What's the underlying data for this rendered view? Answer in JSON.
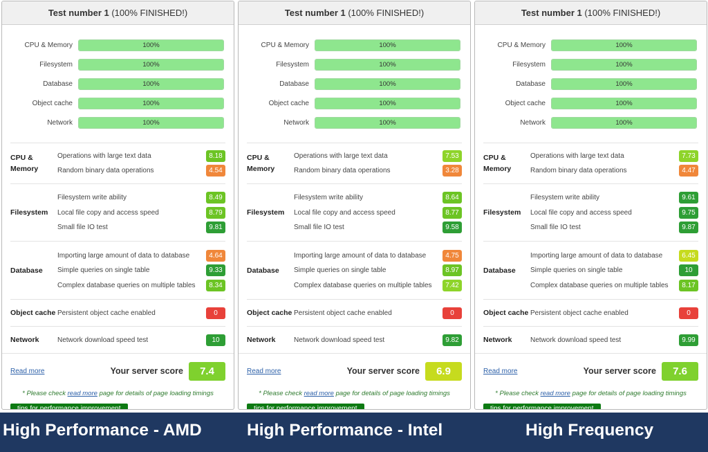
{
  "panels": [
    {
      "title": "Test number 1",
      "status": "(100% FINISHED!)",
      "progress": [
        {
          "label": "CPU & Memory",
          "percent": 100,
          "text": "100%"
        },
        {
          "label": "Filesystem",
          "percent": 100,
          "text": "100%"
        },
        {
          "label": "Database",
          "percent": 100,
          "text": "100%"
        },
        {
          "label": "Object cache",
          "percent": 100,
          "text": "100%"
        },
        {
          "label": "Network",
          "percent": 100,
          "text": "100%"
        }
      ],
      "groups": [
        {
          "name": "CPU & Memory",
          "items": [
            {
              "label": "Operations with large text data",
              "score": "8.18",
              "color": "#6cc424"
            },
            {
              "label": "Random binary data operations",
              "score": "4.54",
              "color": "#f0873a"
            }
          ]
        },
        {
          "name": "Filesystem",
          "items": [
            {
              "label": "Filesystem write ability",
              "score": "8.49",
              "color": "#6cc424"
            },
            {
              "label": "Local file copy and access speed",
              "score": "8.79",
              "color": "#6cc424"
            },
            {
              "label": "Small file IO test",
              "score": "9.81",
              "color": "#2e9e35"
            }
          ]
        },
        {
          "name": "Database",
          "items": [
            {
              "label": "Importing large amount of data to database",
              "score": "4.64",
              "color": "#f0873a"
            },
            {
              "label": "Simple queries on single table",
              "score": "9.33",
              "color": "#2e9e35"
            },
            {
              "label": "Complex database queries on multiple tables",
              "score": "8.34",
              "color": "#6cc424"
            }
          ]
        },
        {
          "name": "Object cache",
          "items": [
            {
              "label": "Persistent object cache enabled",
              "score": "0",
              "color": "#e8413a"
            }
          ]
        },
        {
          "name": "Network",
          "items": [
            {
              "label": "Network download speed test",
              "score": "10",
              "color": "#2e9e35"
            }
          ]
        }
      ],
      "read_more": "Read more",
      "score_label": "Your server score",
      "score": "7.4",
      "score_color": "#7fd12e",
      "note_prefix": "* Please check",
      "note_link": "read more",
      "note_suffix": "page for details of page loading timings",
      "tips": "tips for performance improvement"
    },
    {
      "title": "Test number 1",
      "status": "(100% FINISHED!)",
      "progress": [
        {
          "label": "CPU & Memory",
          "percent": 100,
          "text": "100%"
        },
        {
          "label": "Filesystem",
          "percent": 100,
          "text": "100%"
        },
        {
          "label": "Database",
          "percent": 100,
          "text": "100%"
        },
        {
          "label": "Object cache",
          "percent": 100,
          "text": "100%"
        },
        {
          "label": "Network",
          "percent": 100,
          "text": "100%"
        }
      ],
      "groups": [
        {
          "name": "CPU & Memory",
          "items": [
            {
              "label": "Operations with large text data",
              "score": "7.53",
              "color": "#8ed42a"
            },
            {
              "label": "Random binary data operations",
              "score": "3.28",
              "color": "#f0873a"
            }
          ]
        },
        {
          "name": "Filesystem",
          "items": [
            {
              "label": "Filesystem write ability",
              "score": "8.64",
              "color": "#6cc424"
            },
            {
              "label": "Local file copy and access speed",
              "score": "8.77",
              "color": "#6cc424"
            },
            {
              "label": "Small file IO test",
              "score": "9.58",
              "color": "#2e9e35"
            }
          ]
        },
        {
          "name": "Database",
          "items": [
            {
              "label": "Importing large amount of data to database",
              "score": "4.75",
              "color": "#f0873a"
            },
            {
              "label": "Simple queries on single table",
              "score": "8.97",
              "color": "#6cc424"
            },
            {
              "label": "Complex database queries on multiple tables",
              "score": "7.42",
              "color": "#8ed42a"
            }
          ]
        },
        {
          "name": "Object cache",
          "items": [
            {
              "label": "Persistent object cache enabled",
              "score": "0",
              "color": "#e8413a"
            }
          ]
        },
        {
          "name": "Network",
          "items": [
            {
              "label": "Network download speed test",
              "score": "9.82",
              "color": "#2e9e35"
            }
          ]
        }
      ],
      "read_more": "Read more",
      "score_label": "Your server score",
      "score": "6.9",
      "score_color": "#c6db1e",
      "note_prefix": "* Please check",
      "note_link": "read more",
      "note_suffix": "page for details of page loading timings",
      "tips": "tips for performance improvement"
    },
    {
      "title": "Test number 1",
      "status": "(100% FINISHED!)",
      "progress": [
        {
          "label": "CPU & Memory",
          "percent": 100,
          "text": "100%"
        },
        {
          "label": "Filesystem",
          "percent": 100,
          "text": "100%"
        },
        {
          "label": "Database",
          "percent": 100,
          "text": "100%"
        },
        {
          "label": "Object cache",
          "percent": 100,
          "text": "100%"
        },
        {
          "label": "Network",
          "percent": 100,
          "text": "100%"
        }
      ],
      "groups": [
        {
          "name": "CPU & Memory",
          "items": [
            {
              "label": "Operations with large text data",
              "score": "7.73",
              "color": "#8ed42a"
            },
            {
              "label": "Random binary data operations",
              "score": "4.47",
              "color": "#f0873a"
            }
          ]
        },
        {
          "name": "Filesystem",
          "items": [
            {
              "label": "Filesystem write ability",
              "score": "9.61",
              "color": "#2e9e35"
            },
            {
              "label": "Local file copy and access speed",
              "score": "9.75",
              "color": "#2e9e35"
            },
            {
              "label": "Small file IO test",
              "score": "9.87",
              "color": "#2e9e35"
            }
          ]
        },
        {
          "name": "Database",
          "items": [
            {
              "label": "Importing large amount of data to database",
              "score": "6.45",
              "color": "#c6db1e"
            },
            {
              "label": "Simple queries on single table",
              "score": "10",
              "color": "#2e9e35"
            },
            {
              "label": "Complex database queries on multiple tables",
              "score": "8.17",
              "color": "#6cc424"
            }
          ]
        },
        {
          "name": "Object cache",
          "items": [
            {
              "label": "Persistent object cache enabled",
              "score": "0",
              "color": "#e8413a"
            }
          ]
        },
        {
          "name": "Network",
          "items": [
            {
              "label": "Network download speed test",
              "score": "9.99",
              "color": "#2e9e35"
            }
          ]
        }
      ],
      "read_more": "Read more",
      "score_label": "Your server score",
      "score": "7.6",
      "score_color": "#7fd12e",
      "note_prefix": "* Please check",
      "note_link": "read more",
      "note_suffix": "page for details of page loading timings",
      "tips": "tips for performance improvement"
    }
  ],
  "banner": [
    "High Performance  - AMD",
    "High Performance - Intel",
    "High Frequency"
  ]
}
